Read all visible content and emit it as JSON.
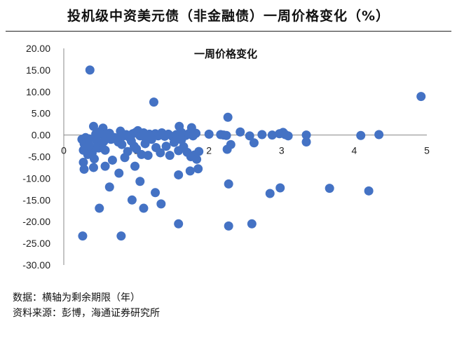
{
  "page": {
    "title": "投机级中资美元债（非金融债）一周价格变化（%）",
    "notes": [
      "数据：横轴为剩余期限（年）",
      "资料来源：彭博，海通证券研究所"
    ]
  },
  "colors": {
    "marker": "#4472C4",
    "axis": "#888888",
    "text": "#222222"
  },
  "chart_data": {
    "type": "scatter",
    "title": "一周价格变化",
    "xlabel": "",
    "ylabel": "",
    "xlim": [
      0,
      5
    ],
    "ylim": [
      -30,
      20
    ],
    "x_ticks": [
      "0",
      "1",
      "2",
      "3",
      "4",
      "5"
    ],
    "y_ticks": [
      "20.00",
      "15.00",
      "10.00",
      "5.00",
      "0.00",
      "-5.00",
      "-10.00",
      "-15.00",
      "-20.00",
      "-25.00",
      "-30.00"
    ],
    "grid": false,
    "legend": "none",
    "series": [
      {
        "points": [
          [
            0.36,
            15.0
          ],
          [
            1.24,
            7.6
          ],
          [
            4.92,
            8.9
          ],
          [
            2.26,
            4.1
          ],
          [
            0.41,
            2.0
          ],
          [
            0.54,
            1.6
          ],
          [
            0.52,
            1.0
          ],
          [
            0.47,
            0.6
          ],
          [
            0.44,
            0.2
          ],
          [
            0.5,
            0.3
          ],
          [
            0.63,
            0.4
          ],
          [
            0.59,
            0.2
          ],
          [
            0.6,
            -0.1
          ],
          [
            0.7,
            -0.6
          ],
          [
            0.78,
            0.9
          ],
          [
            0.81,
            -0.3
          ],
          [
            0.86,
            0.1
          ],
          [
            0.9,
            -0.5
          ],
          [
            0.95,
            0.3
          ],
          [
            0.99,
            0.6
          ],
          [
            1.02,
            1.0
          ],
          [
            1.05,
            -0.2
          ],
          [
            1.1,
            0.5
          ],
          [
            1.13,
            -0.8
          ],
          [
            1.18,
            0.2
          ],
          [
            1.22,
            -0.4
          ],
          [
            1.26,
            0.3
          ],
          [
            1.3,
            -0.2
          ],
          [
            1.35,
            0.5
          ],
          [
            1.39,
            -0.3
          ],
          [
            1.44,
            0.2
          ],
          [
            1.5,
            -0.4
          ],
          [
            1.55,
            0.1
          ],
          [
            1.59,
            2.0
          ],
          [
            1.62,
            0.6
          ],
          [
            1.68,
            -0.1
          ],
          [
            1.72,
            0.3
          ],
          [
            1.78,
            -0.2
          ],
          [
            1.82,
            0.4
          ],
          [
            1.76,
            1.7
          ],
          [
            2.0,
            0.2
          ],
          [
            2.16,
            0.1
          ],
          [
            2.2,
            0.0
          ],
          [
            2.24,
            -0.1
          ],
          [
            2.43,
            0.7
          ],
          [
            2.56,
            -0.2
          ],
          [
            2.73,
            0.1
          ],
          [
            2.87,
            0.0
          ],
          [
            2.97,
            0.3
          ],
          [
            3.02,
            0.6
          ],
          [
            3.05,
            0.1
          ],
          [
            3.09,
            -0.2
          ],
          [
            3.34,
            0.0
          ],
          [
            4.09,
            -0.1
          ],
          [
            4.34,
            0.1
          ],
          [
            0.27,
            -3.5
          ],
          [
            0.28,
            -2.0
          ],
          [
            0.25,
            -1.0
          ],
          [
            0.3,
            -0.6
          ],
          [
            0.32,
            -1.6
          ],
          [
            0.33,
            -4.5
          ],
          [
            0.35,
            -0.9
          ],
          [
            0.37,
            -2.8
          ],
          [
            0.39,
            -4.2
          ],
          [
            0.42,
            -5.5
          ],
          [
            0.45,
            -1.2
          ],
          [
            0.48,
            -3.0
          ],
          [
            0.52,
            -2.4
          ],
          [
            0.55,
            -1.5
          ],
          [
            0.57,
            -3.5
          ],
          [
            0.65,
            -1.0
          ],
          [
            0.67,
            -5.8
          ],
          [
            0.75,
            -1.6
          ],
          [
            0.8,
            -2.2
          ],
          [
            0.84,
            -5.2
          ],
          [
            0.88,
            -3.8
          ],
          [
            0.93,
            -1.4
          ],
          [
            0.97,
            -2.6
          ],
          [
            1.0,
            -3.2
          ],
          [
            1.07,
            -4.5
          ],
          [
            1.12,
            -2.0
          ],
          [
            1.16,
            -4.7
          ],
          [
            1.21,
            -1.0
          ],
          [
            1.27,
            -2.9
          ],
          [
            1.33,
            -4.1
          ],
          [
            1.41,
            -2.6
          ],
          [
            1.46,
            -4.7
          ],
          [
            1.52,
            -1.7
          ],
          [
            1.58,
            -3.6
          ],
          [
            1.65,
            -2.7
          ],
          [
            1.7,
            -4.0
          ],
          [
            1.75,
            -5.0
          ],
          [
            1.8,
            -4.6
          ],
          [
            1.86,
            -3.8
          ],
          [
            2.25,
            -3.3
          ],
          [
            2.3,
            -2.2
          ],
          [
            2.62,
            -1.8
          ],
          [
            3.34,
            -1.6
          ],
          [
            0.27,
            -6.3
          ],
          [
            0.28,
            -7.9
          ],
          [
            0.41,
            -7.5
          ],
          [
            0.57,
            -7.2
          ],
          [
            1.83,
            -5.6
          ],
          [
            1.74,
            -8.3
          ],
          [
            1.85,
            -7.8
          ],
          [
            1.58,
            -9.2
          ],
          [
            0.76,
            -8.8
          ],
          [
            0.98,
            -7.2
          ],
          [
            1.05,
            -10.7
          ],
          [
            2.27,
            -11.3
          ],
          [
            0.63,
            -12.0
          ],
          [
            2.98,
            -12.2
          ],
          [
            3.66,
            -12.3
          ],
          [
            4.2,
            -12.9
          ],
          [
            2.84,
            -13.5
          ],
          [
            1.26,
            -13.3
          ],
          [
            0.94,
            -15.0
          ],
          [
            1.34,
            -15.9
          ],
          [
            1.1,
            -16.9
          ],
          [
            0.49,
            -16.9
          ],
          [
            1.58,
            -20.5
          ],
          [
            2.27,
            -21.0
          ],
          [
            2.59,
            -20.5
          ],
          [
            0.26,
            -23.3
          ],
          [
            0.79,
            -23.3
          ],
          [
            0.44,
            -3.0
          ],
          [
            0.35,
            -2.4
          ],
          [
            1.62,
            -1.1
          ]
        ]
      }
    ]
  }
}
